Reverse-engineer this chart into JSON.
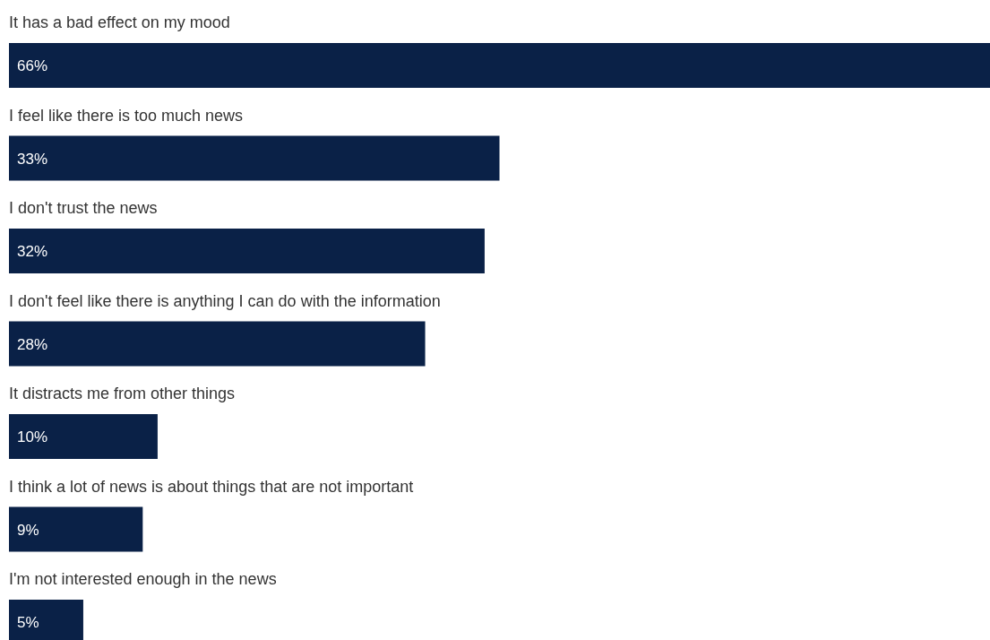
{
  "chart_data": {
    "type": "bar",
    "orientation": "horizontal",
    "categories": [
      "It has a bad effect on my mood",
      "I feel like there is too much news",
      "I don't trust the news",
      "I don't feel like there is anything I can do with the information",
      "It distracts me from other things",
      "I think a lot of news is about things that are not important",
      "I'm not interested enough in the news"
    ],
    "values": [
      66,
      33,
      32,
      28,
      10,
      9,
      5
    ],
    "value_labels": [
      "66%",
      "33%",
      "32%",
      "28%",
      "10%",
      "9%",
      "5%"
    ],
    "color": "#0a2147"
  }
}
